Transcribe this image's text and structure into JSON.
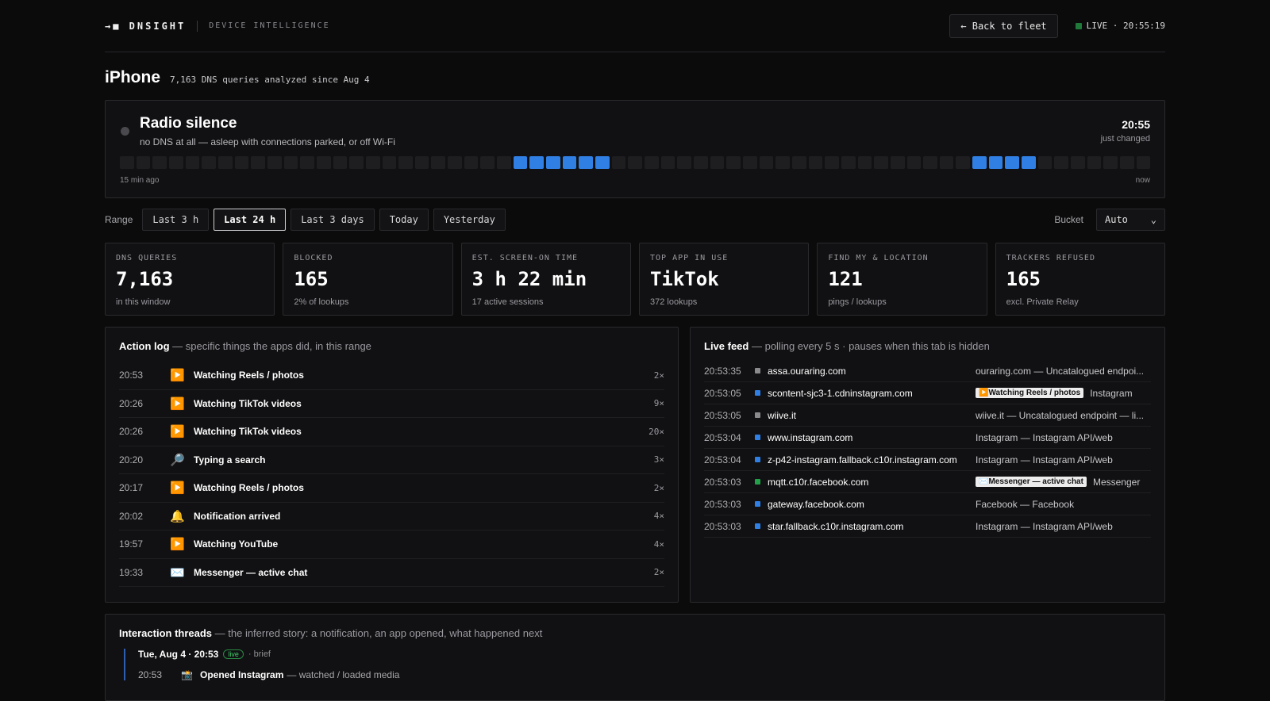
{
  "brand": {
    "logo": "→■ DNSIGHT",
    "subtitle": "DEVICE INTELLIGENCE"
  },
  "header": {
    "back_label": "← Back to fleet",
    "live_label": "LIVE · 20:55:19"
  },
  "device": {
    "name": "iPhone",
    "subtitle": "7,163 DNS queries analyzed since Aug 4"
  },
  "status": {
    "title": "Radio silence",
    "description": "no DNS at all — asleep with connections parked, or off Wi-Fi",
    "time": "20:55",
    "changed": "just changed",
    "axis_left": "15 min ago",
    "axis_right": "now",
    "activity": [
      0,
      0,
      0,
      0,
      0,
      0,
      0,
      0,
      0,
      0,
      0,
      0,
      0,
      0,
      0,
      0,
      0,
      0,
      0,
      0,
      0,
      0,
      0,
      0,
      1,
      1,
      1,
      1,
      1,
      1,
      0,
      0,
      0,
      0,
      0,
      0,
      0,
      0,
      0,
      0,
      0,
      0,
      0,
      0,
      0,
      0,
      0,
      0,
      0,
      0,
      0,
      0,
      1,
      1,
      1,
      1,
      0,
      0,
      0,
      0,
      0,
      0,
      0
    ]
  },
  "range": {
    "label": "Range",
    "options": [
      "Last 3 h",
      "Last 24 h",
      "Last 3 days",
      "Today",
      "Yesterday"
    ],
    "active_index": 1,
    "bucket_label": "Bucket",
    "bucket_value": "Auto"
  },
  "stats": [
    {
      "label": "DNS QUERIES",
      "value": "7,163",
      "sub": "in this window"
    },
    {
      "label": "BLOCKED",
      "value": "165",
      "sub": "2% of lookups"
    },
    {
      "label": "EST. SCREEN-ON TIME",
      "value": "3 h 22 min",
      "sub": "17 active sessions"
    },
    {
      "label": "TOP APP IN USE",
      "value": "TikTok",
      "sub": "372 lookups"
    },
    {
      "label": "FIND MY & LOCATION",
      "value": "121",
      "sub": "pings / lookups"
    },
    {
      "label": "TRACKERS REFUSED",
      "value": "165",
      "sub": "excl. Private Relay"
    }
  ],
  "action_log": {
    "title": "Action log",
    "subtitle": " — specific things the apps did, in this range",
    "rows": [
      {
        "time": "20:53",
        "icon": "▶️",
        "label": "Watching Reels / photos",
        "count": "2×"
      },
      {
        "time": "20:26",
        "icon": "▶️",
        "label": "Watching TikTok videos",
        "count": "9×"
      },
      {
        "time": "20:26",
        "icon": "▶️",
        "label": "Watching TikTok videos",
        "count": "20×"
      },
      {
        "time": "20:20",
        "icon": "🔎",
        "label": "Typing a search",
        "count": "3×"
      },
      {
        "time": "20:17",
        "icon": "▶️",
        "label": "Watching Reels / photos",
        "count": "2×"
      },
      {
        "time": "20:02",
        "icon": "🔔",
        "label": "Notification arrived",
        "count": "4×"
      },
      {
        "time": "19:57",
        "icon": "▶️",
        "label": "Watching YouTube",
        "count": "4×"
      },
      {
        "time": "19:33",
        "icon": "✉️",
        "label": "Messenger — active chat",
        "count": "2×"
      }
    ]
  },
  "live_feed": {
    "title": "Live feed",
    "subtitle": " — polling every 5 s · pauses when this tab is hidden",
    "rows": [
      {
        "time": "20:53:35",
        "color": "#8a8a8e",
        "domain": "assa.ouraring.com",
        "tag": "",
        "desc": "ouraring.com — Uncatalogued endpoi..."
      },
      {
        "time": "20:53:05",
        "color": "#2f7fe5",
        "domain": "scontent-sjc3-1.cdninstagram.com",
        "tag": "▶️Watching Reels / photos",
        "desc": "Instagram"
      },
      {
        "time": "20:53:05",
        "color": "#8a8a8e",
        "domain": "wiive.it",
        "tag": "",
        "desc": "wiive.it — Uncatalogued endpoint — li..."
      },
      {
        "time": "20:53:04",
        "color": "#2f7fe5",
        "domain": "www.instagram.com",
        "tag": "",
        "desc": "Instagram — Instagram API/web"
      },
      {
        "time": "20:53:04",
        "color": "#2f7fe5",
        "domain": "z-p42-instagram.fallback.c10r.instagram.com",
        "tag": "",
        "desc": "Instagram — Instagram API/web"
      },
      {
        "time": "20:53:03",
        "color": "#22a04a",
        "domain": "mqtt.c10r.facebook.com",
        "tag": "✉️Messenger — active chat",
        "desc": "Messenger"
      },
      {
        "time": "20:53:03",
        "color": "#2f7fe5",
        "domain": "gateway.facebook.com",
        "tag": "",
        "desc": "Facebook — Facebook"
      },
      {
        "time": "20:53:03",
        "color": "#2f7fe5",
        "domain": "star.fallback.c10r.instagram.com",
        "tag": "",
        "desc": "Instagram — Instagram API/web"
      }
    ]
  },
  "threads": {
    "title": "Interaction threads",
    "subtitle": " — the inferred story: a notification, an app opened, what happened next",
    "head": "Tue, Aug 4 · 20:53",
    "badge": "live",
    "brief": "· brief",
    "row": {
      "time": "20:53",
      "icon": "📸",
      "label": "Opened Instagram",
      "desc": "— watched / loaded media"
    }
  }
}
